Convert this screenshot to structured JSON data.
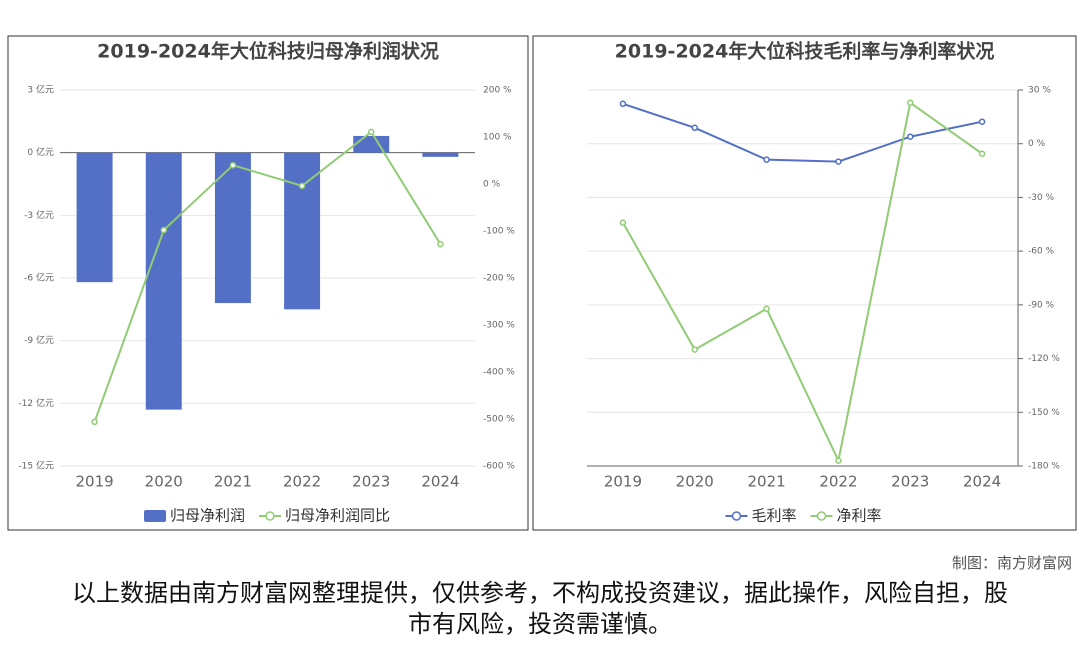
{
  "chart_data": [
    {
      "type": "combo",
      "title": "2019-2024年大位科技归母净利润状况",
      "categories": [
        "2019",
        "2020",
        "2021",
        "2022",
        "2023",
        "2024"
      ],
      "series": [
        {
          "name": "归母净利润",
          "type": "bar",
          "color": "#5470c6",
          "values": [
            -6.2,
            -12.3,
            -7.2,
            -7.5,
            0.8,
            -0.2
          ]
        },
        {
          "name": "归母净利润同比",
          "type": "line",
          "axis": "y2",
          "color": "#91cc75",
          "values": [
            -506,
            -98,
            40,
            -4,
            111,
            -128
          ]
        }
      ],
      "ylim": [
        -15,
        3
      ],
      "yticks": [
        {
          "value": 3,
          "label": "3 亿元"
        },
        {
          "value": 0,
          "label": "0 亿元"
        },
        {
          "value": -3,
          "label": "-3 亿元"
        },
        {
          "value": -6,
          "label": "-6 亿元"
        },
        {
          "value": -9,
          "label": "-9 亿元"
        },
        {
          "value": -12,
          "label": "-12 亿元"
        },
        {
          "value": -15,
          "label": "-15 亿元"
        }
      ],
      "y2lim": [
        -600,
        200
      ],
      "y2ticks": [
        {
          "value": 200,
          "label": "200 %"
        },
        {
          "value": 100,
          "label": "100 %"
        },
        {
          "value": 0,
          "label": "0 %"
        },
        {
          "value": -100,
          "label": "-100 %"
        },
        {
          "value": -200,
          "label": "-200 %"
        },
        {
          "value": -300,
          "label": "-300 %"
        },
        {
          "value": -400,
          "label": "-400 %"
        },
        {
          "value": -500,
          "label": "-500 %"
        },
        {
          "value": -600,
          "label": "-600 %"
        }
      ],
      "grid": true
    },
    {
      "type": "line",
      "title": "2019-2024年大位科技毛利率与净利率状况",
      "categories": [
        "2019",
        "2020",
        "2021",
        "2022",
        "2023",
        "2024"
      ],
      "series": [
        {
          "name": "毛利率",
          "color": "#5470c6",
          "values": [
            22.3,
            8.9,
            -8.9,
            -10,
            3.9,
            12.3
          ]
        },
        {
          "name": "净利率",
          "color": "#91cc75",
          "values": [
            -44.1,
            -115,
            -92.2,
            -177,
            22.9,
            -5.6
          ]
        }
      ],
      "ylim": [
        -180,
        30
      ],
      "y_axis_position": "right",
      "yticks": [
        {
          "value": 30,
          "label": "30 %"
        },
        {
          "value": 0,
          "label": "0 %"
        },
        {
          "value": -30,
          "label": "-30 %"
        },
        {
          "value": -60,
          "label": "-60 %"
        },
        {
          "value": -90,
          "label": "-90 %"
        },
        {
          "value": -120,
          "label": "-120 %"
        },
        {
          "value": -150,
          "label": "-150 %"
        },
        {
          "value": -180,
          "label": "-180 %"
        }
      ],
      "grid": true
    }
  ],
  "credit": "制图：南方财富网",
  "note": "以上数据由南方财富网整理提供，仅供参考，不构成投资建议，据此操作，风险自担，股市有风险，投资需谨慎。"
}
